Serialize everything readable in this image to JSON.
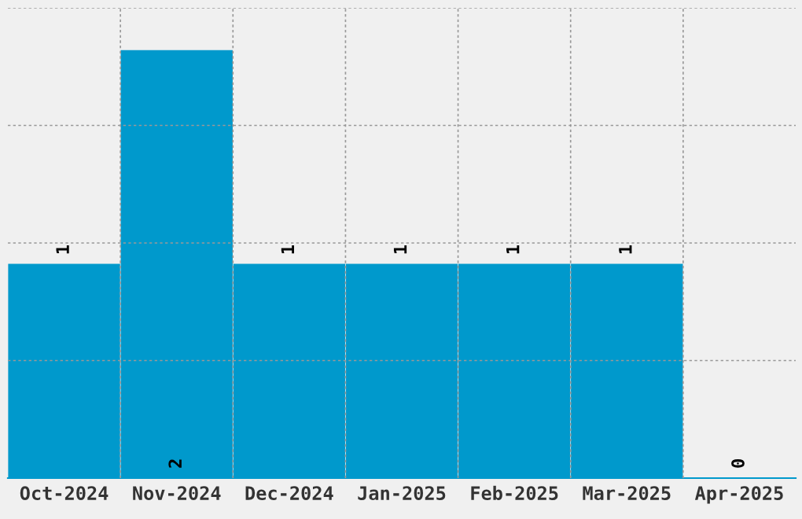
{
  "chart_data": {
    "type": "bar",
    "categories": [
      "Oct-2024",
      "Nov-2024",
      "Dec-2024",
      "Jan-2025",
      "Feb-2025",
      "Mar-2025",
      "Apr-2025"
    ],
    "values": [
      1,
      2,
      1,
      1,
      1,
      1,
      0
    ],
    "color": "#0099cc",
    "ylim": [
      0,
      2.2
    ],
    "yticks": [
      {
        "value": 0.55,
        "label": null
      },
      {
        "value": 1.1,
        "label": null
      },
      {
        "value": 1.65,
        "label": null
      },
      {
        "value": 2.2,
        "label": null
      }
    ],
    "tick_labels": "x",
    "grid": true,
    "data_labels": true
  }
}
